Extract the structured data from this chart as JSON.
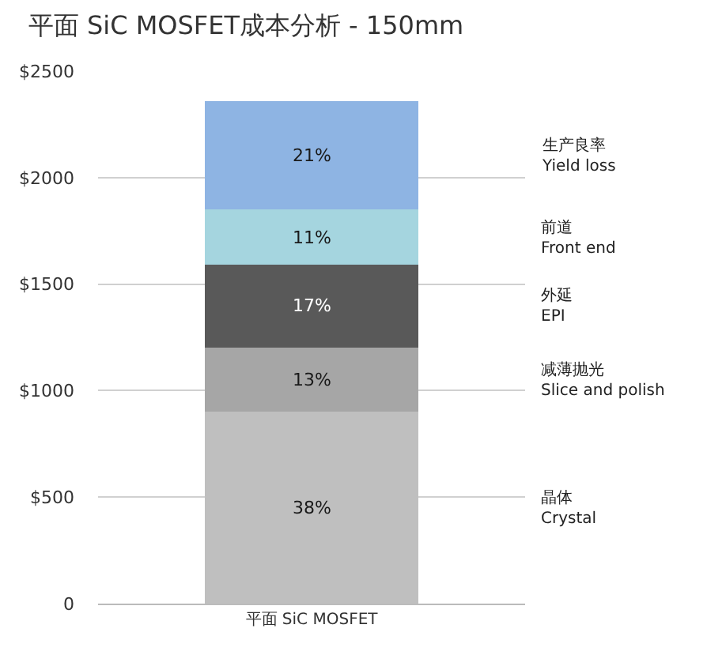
{
  "chart_data": {
    "type": "bar",
    "stacked": true,
    "title": "平面 SiC MOSFET成本分析 - 150mm",
    "categories": [
      "平面 SiC MOSFET"
    ],
    "series": [
      {
        "name": "晶体\nCrystal",
        "color": "#bfbfbf",
        "values": [
          900
        ]
      },
      {
        "name": "减薄抛光\nSlice and polish",
        "color": "#a6a6a6",
        "values": [
          300
        ]
      },
      {
        "name": "外延\nEPI",
        "color": "#595959",
        "values": [
          390
        ]
      },
      {
        "name": "前道\nFront end",
        "color": "#a5d5df",
        "values": [
          260
        ]
      },
      {
        "name": "生产良率\nYield loss",
        "color": "#8eb4e3",
        "values": [
          510
        ]
      }
    ],
    "annotations": [
      "38%",
      "13%",
      "17%",
      "11%",
      "21%"
    ],
    "ylim": [
      0,
      2500
    ],
    "yticks": [
      {
        "value": 0,
        "label": "0"
      },
      {
        "value": 500,
        "label": "$500"
      },
      {
        "value": 1000,
        "label": "$1000"
      },
      {
        "value": 1500,
        "label": "$1500"
      },
      {
        "value": 2000,
        "label": "$2000"
      },
      {
        "value": 2500,
        "label": "$2500"
      }
    ],
    "grid": "y",
    "legend": false
  }
}
